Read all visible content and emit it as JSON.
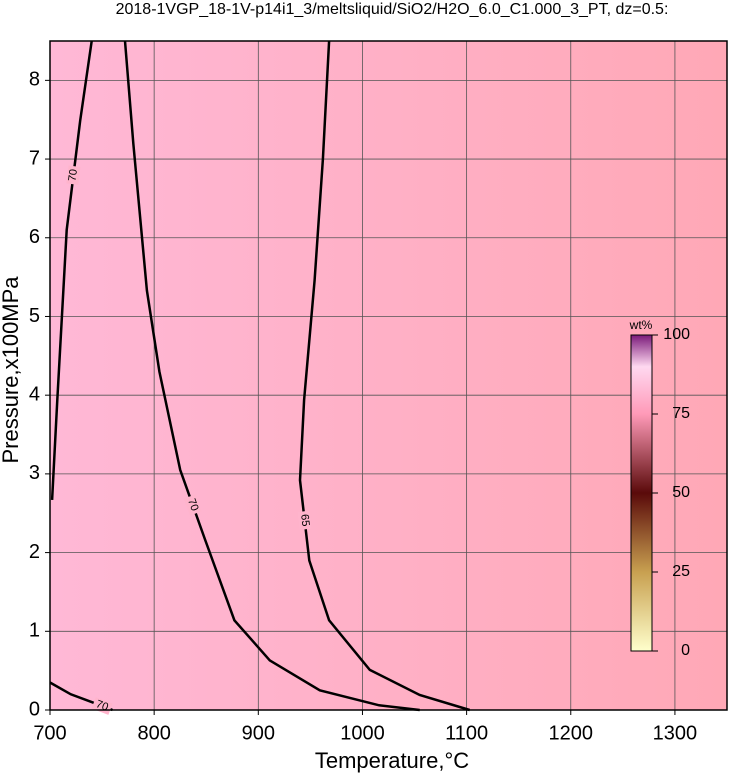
{
  "chart_data": {
    "type": "contour",
    "title": "2018-1VGP_18-1V-p14i1_3/meltsliquid/SiO2/H2O_6.0_C1.000_3_PT, dz=0.5:",
    "x_label": "Temperature,°C",
    "y_label": "Pressure,x100MPa",
    "xlim": [
      700,
      1350
    ],
    "ylim": [
      0,
      8.5
    ],
    "xticks": [
      700,
      800,
      900,
      1000,
      1100,
      1200,
      1300
    ],
    "yticks": [
      0,
      1,
      2,
      3,
      4,
      5,
      6,
      7,
      8
    ],
    "grid": true,
    "contours": [
      {
        "level": 70,
        "x": [
          772,
          780,
          793,
          805,
          825,
          849,
          877,
          911,
          959,
          1016,
          1055
        ],
        "y": [
          8.5,
          7.2,
          5.33,
          4.3,
          3.05,
          2.16,
          1.14,
          0.63,
          0.25,
          0.06,
          0
        ]
      },
      {
        "level": 65,
        "x": [
          968,
          962,
          954,
          944,
          940,
          949,
          968,
          1007,
          1055,
          1103
        ],
        "y": [
          8.5,
          7.0,
          5.46,
          3.94,
          2.92,
          1.9,
          1.14,
          0.51,
          0.19,
          0
        ]
      },
      {
        "level": 70,
        "x": [
          740,
          729,
          716,
          707,
          702
        ],
        "y": [
          8.5,
          7.49,
          6.1,
          3.94,
          2.67
        ]
      },
      {
        "level": 70,
        "x": [
          700,
          720,
          740,
          760
        ],
        "y": [
          0.35,
          0.2,
          0.1,
          0
        ]
      }
    ],
    "colorbar": {
      "label": "wt%",
      "lim": [
        0,
        100
      ],
      "ticks": [
        0,
        25,
        50,
        75,
        100
      ]
    }
  }
}
